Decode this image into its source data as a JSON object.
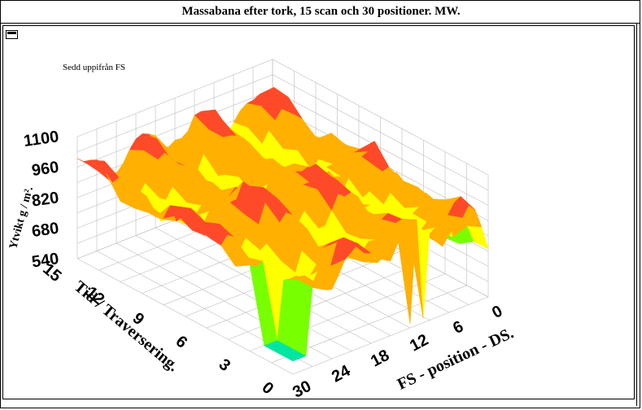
{
  "window": {
    "title": "Massabana efter tork, 15 scan och 30 positioner. MW."
  },
  "icons": {
    "window_menu": "window-menu-icon"
  },
  "chart_data": {
    "type": "surface3d",
    "title": "Massabana efter tork, 15 scan och 30 positioner. MW.",
    "subtitle": "Sedd uppifrån FS",
    "zlabel": "Ytvikt g / m².",
    "xlabel": "FS - position - DS.",
    "ylabel": "Tid / Traversering.",
    "z_ticks": [
      "540",
      "680",
      "820",
      "960",
      "1100"
    ],
    "x_ticks": [
      "0",
      "6",
      "12",
      "18",
      "24",
      "30"
    ],
    "y_ticks": [
      "0",
      "3",
      "6",
      "9",
      "12",
      "15"
    ],
    "x_range": [
      0,
      30
    ],
    "y_range": [
      0,
      15
    ],
    "z_range": [
      540,
      1100
    ],
    "grid": true,
    "colormap": [
      "#ff00ff",
      "#00e6a0",
      "#78ff00",
      "#ffff00",
      "#ffb000",
      "#ff4a2a",
      "#ff9090"
    ]
  }
}
